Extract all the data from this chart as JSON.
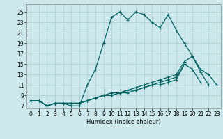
{
  "xlabel": "Humidex (Indice chaleur)",
  "bg_color": "#cce8ec",
  "grid_color": "#aacccc",
  "line_color": "#006060",
  "xlim": [
    -0.5,
    23.5
  ],
  "ylim": [
    6.5,
    26.5
  ],
  "xticks": [
    0,
    1,
    2,
    3,
    4,
    5,
    6,
    7,
    8,
    9,
    10,
    11,
    12,
    13,
    14,
    15,
    16,
    17,
    18,
    19,
    20,
    21,
    22,
    23
  ],
  "yticks": [
    7,
    9,
    11,
    13,
    15,
    17,
    19,
    21,
    23,
    25
  ],
  "series": [
    {
      "x": [
        0,
        1,
        2,
        3,
        4,
        5,
        6,
        7,
        8,
        9,
        10,
        11,
        12,
        13,
        14,
        15,
        16,
        17,
        18,
        19,
        20,
        21,
        22,
        23
      ],
      "y": [
        8,
        8,
        7,
        7.5,
        7.5,
        7,
        7,
        11,
        14,
        19,
        24,
        25,
        23.5,
        25,
        24.5,
        23,
        22,
        24.5,
        21.5,
        19,
        16.5,
        14,
        13,
        11
      ]
    },
    {
      "x": [
        0,
        1,
        2,
        3,
        4,
        5,
        6,
        7,
        8,
        9,
        10,
        11,
        12,
        13,
        14,
        15,
        16,
        17,
        18,
        19,
        20,
        21,
        22
      ],
      "y": [
        8,
        8,
        7,
        7.5,
        7.5,
        7.5,
        7.5,
        8,
        8.5,
        9,
        9.5,
        9.5,
        10,
        10.5,
        11,
        11.5,
        12,
        12.5,
        13,
        15.5,
        16.5,
        13.5,
        11
      ]
    },
    {
      "x": [
        0,
        1,
        2,
        3,
        4,
        5,
        6,
        7,
        8,
        9,
        10,
        11,
        12,
        13,
        14,
        15,
        16,
        17,
        18,
        19,
        20,
        21
      ],
      "y": [
        8,
        8,
        7,
        7.5,
        7.5,
        7.5,
        7.5,
        8,
        8.5,
        9,
        9,
        9.5,
        9.5,
        10,
        10.5,
        11,
        11.5,
        12,
        12.5,
        15,
        14,
        11.5
      ]
    },
    {
      "x": [
        0,
        1,
        2,
        3,
        4,
        5,
        6,
        7,
        8,
        9,
        10,
        11,
        12,
        13,
        14,
        15,
        16,
        17,
        18,
        19
      ],
      "y": [
        8,
        8,
        7,
        7.5,
        7.5,
        7.5,
        7.5,
        8,
        8.5,
        9,
        9,
        9.5,
        10,
        10,
        10.5,
        11,
        11,
        11.5,
        12,
        15
      ]
    }
  ],
  "xlabel_fontsize": 6,
  "tick_fontsize": 5.5,
  "linewidth": 0.9,
  "markersize": 2.5
}
